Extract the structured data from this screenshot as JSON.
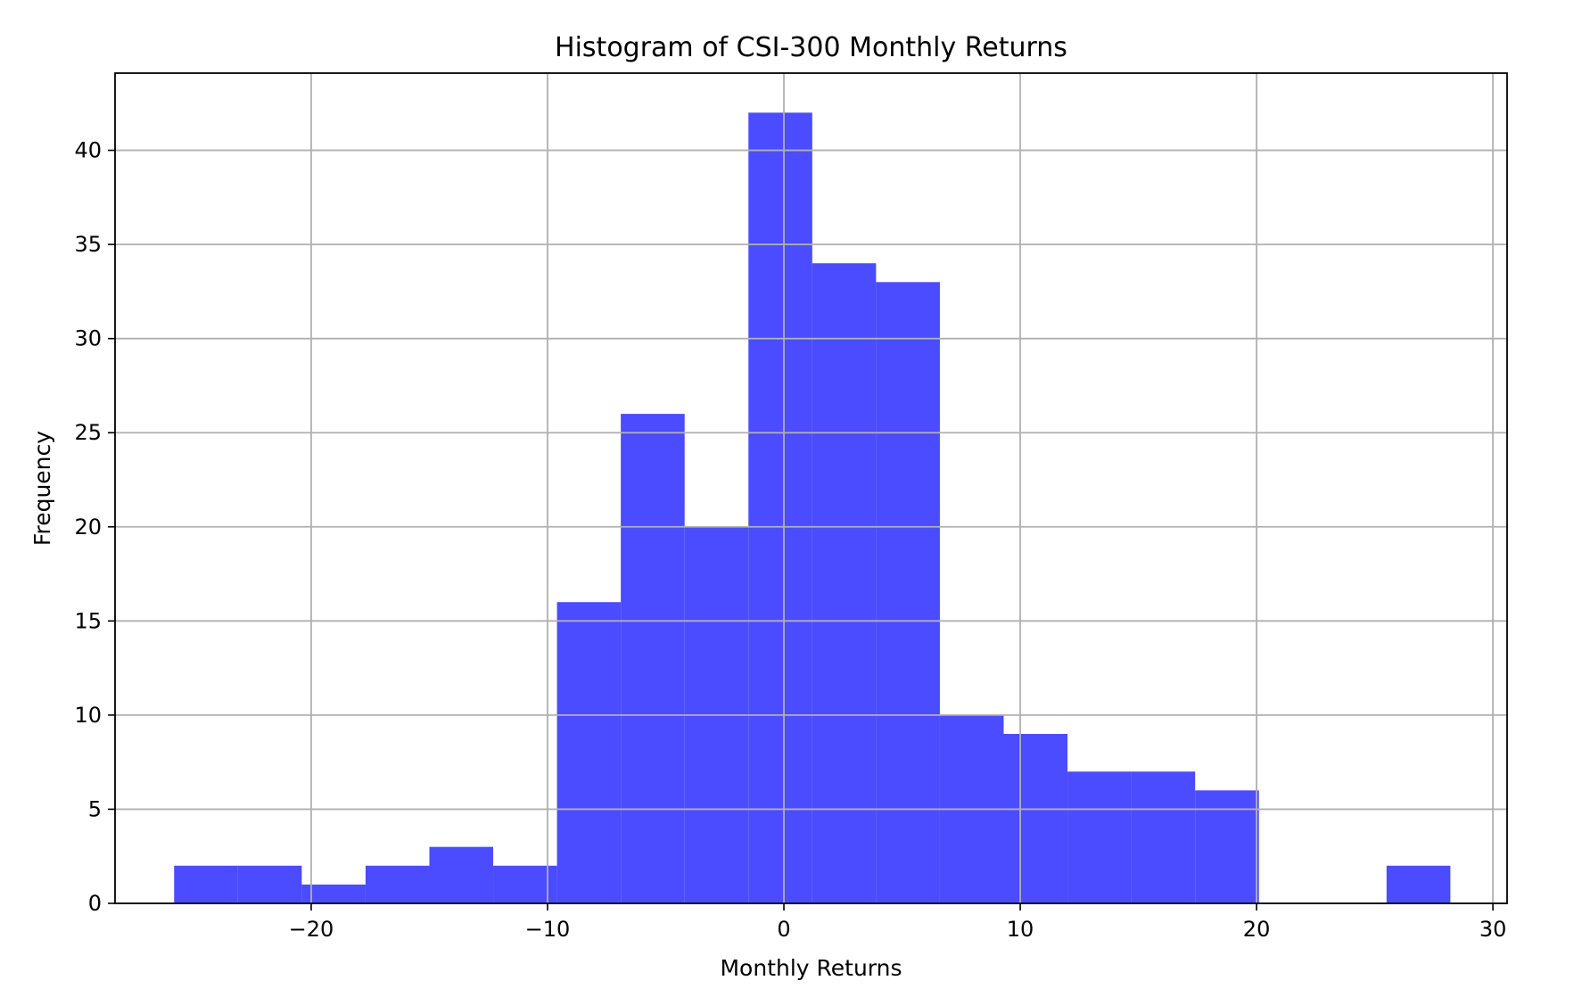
{
  "chart_data": {
    "type": "bar",
    "title": "Histogram of CSI-300 Monthly Returns",
    "xlabel": "Monthly Returns",
    "ylabel": "Frequency",
    "xlim": [
      -28.3,
      30.6
    ],
    "ylim": [
      0,
      44.1
    ],
    "xticks": [
      -20,
      -10,
      0,
      10,
      20,
      30
    ],
    "xtick_labels": [
      "−20",
      "−10",
      "0",
      "10",
      "20",
      "30"
    ],
    "yticks": [
      0,
      5,
      10,
      15,
      20,
      25,
      30,
      35,
      40
    ],
    "ytick_labels": [
      "0",
      "5",
      "10",
      "15",
      "20",
      "25",
      "30",
      "35",
      "40"
    ],
    "grid": true,
    "bar_color": "#4b4bff",
    "bin_edges": [
      -25.8,
      -23.1,
      -20.4,
      -17.7,
      -15.0,
      -12.3,
      -9.6,
      -6.9,
      -4.2,
      -1.5,
      1.2,
      3.9,
      6.6,
      9.3,
      12.0,
      14.7,
      17.4,
      20.1,
      22.8,
      25.5,
      28.2
    ],
    "counts": [
      2,
      2,
      1,
      2,
      3,
      2,
      16,
      26,
      20,
      42,
      34,
      33,
      10,
      9,
      7,
      7,
      6,
      0,
      0,
      2
    ]
  }
}
